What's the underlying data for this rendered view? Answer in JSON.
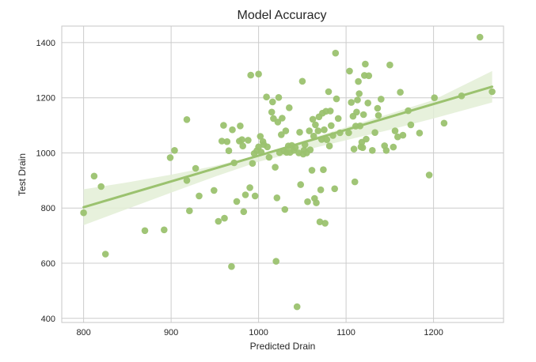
{
  "chart_data": {
    "type": "scatter",
    "title": "Model Accuracy",
    "xlabel": "Predicted Drain",
    "ylabel": "Test Drain",
    "xlim": [
      775,
      1280
    ],
    "ylim": [
      385,
      1460
    ],
    "xticks": [
      800,
      900,
      1000,
      1100,
      1200
    ],
    "yticks": [
      400,
      600,
      800,
      1000,
      1200,
      1400
    ],
    "grid": true,
    "colors": {
      "points": "#9bc26f",
      "regression_line": "#9bc26f",
      "confidence_band": "#e3efd6",
      "grid": "#cccccc",
      "frame": "#c7c7c7"
    },
    "regression_line": {
      "x": [
        800,
        1267
      ],
      "y": [
        803,
        1240
      ]
    },
    "confidence_band": {
      "x": [
        800,
        850,
        900,
        950,
        1000,
        1050,
        1100,
        1150,
        1200,
        1267
      ],
      "lower": [
        738,
        797,
        856,
        914,
        968,
        1008,
        1046,
        1084,
        1125,
        1183
      ],
      "upper": [
        868,
        893,
        921,
        953,
        991,
        1043,
        1093,
        1142,
        1192,
        1297
      ]
    },
    "points": [
      [
        800,
        783
      ],
      [
        812,
        916
      ],
      [
        820,
        878
      ],
      [
        825,
        633
      ],
      [
        870,
        718
      ],
      [
        892,
        721
      ],
      [
        899,
        983
      ],
      [
        904,
        1009
      ],
      [
        918,
        1121
      ],
      [
        918,
        900
      ],
      [
        921,
        790
      ],
      [
        928,
        944
      ],
      [
        932,
        844
      ],
      [
        949,
        864
      ],
      [
        954,
        752
      ],
      [
        958,
        1043
      ],
      [
        960,
        1100
      ],
      [
        961,
        763
      ],
      [
        964,
        1041
      ],
      [
        966,
        1008
      ],
      [
        969,
        588
      ],
      [
        970,
        1084
      ],
      [
        972,
        964
      ],
      [
        975,
        824
      ],
      [
        978,
        1043
      ],
      [
        979,
        1098
      ],
      [
        981,
        1048
      ],
      [
        982,
        1025
      ],
      [
        983,
        787
      ],
      [
        985,
        848
      ],
      [
        988,
        1046
      ],
      [
        990,
        874
      ],
      [
        991,
        1282
      ],
      [
        993,
        962
      ],
      [
        995,
        998
      ],
      [
        996,
        844
      ],
      [
        998,
        1008
      ],
      [
        1000,
        1022
      ],
      [
        1000,
        1286
      ],
      [
        1002,
        1060
      ],
      [
        1003,
        1003
      ],
      [
        1005,
        1041
      ],
      [
        1006,
        1030
      ],
      [
        1009,
        1203
      ],
      [
        1010,
        1022
      ],
      [
        1012,
        984
      ],
      [
        1015,
        1148
      ],
      [
        1016,
        1185
      ],
      [
        1017,
        1125
      ],
      [
        1019,
        948
      ],
      [
        1020,
        607
      ],
      [
        1021,
        837
      ],
      [
        1022,
        1112
      ],
      [
        1023,
        1201
      ],
      [
        1024,
        1001
      ],
      [
        1026,
        1066
      ],
      [
        1027,
        1126
      ],
      [
        1029,
        1007
      ],
      [
        1030,
        795
      ],
      [
        1031,
        1080
      ],
      [
        1032,
        1002
      ],
      [
        1034,
        1025
      ],
      [
        1035,
        1164
      ],
      [
        1036,
        1002
      ],
      [
        1038,
        1027
      ],
      [
        1040,
        1009
      ],
      [
        1042,
        1019
      ],
      [
        1044,
        442
      ],
      [
        1046,
        1000
      ],
      [
        1047,
        1075
      ],
      [
        1048,
        885
      ],
      [
        1050,
        1260
      ],
      [
        1051,
        996
      ],
      [
        1052,
        1010
      ],
      [
        1053,
        1030
      ],
      [
        1055,
        1000
      ],
      [
        1056,
        823
      ],
      [
        1058,
        1080
      ],
      [
        1059,
        1011
      ],
      [
        1061,
        937
      ],
      [
        1062,
        1122
      ],
      [
        1063,
        1061
      ],
      [
        1064,
        835
      ],
      [
        1065,
        1102
      ],
      [
        1066,
        819
      ],
      [
        1068,
        1080
      ],
      [
        1069,
        1131
      ],
      [
        1070,
        750
      ],
      [
        1071,
        866
      ],
      [
        1072,
        1049
      ],
      [
        1073,
        1144
      ],
      [
        1074,
        939
      ],
      [
        1075,
        1084
      ],
      [
        1076,
        745
      ],
      [
        1077,
        1151
      ],
      [
        1078,
        1048
      ],
      [
        1080,
        1222
      ],
      [
        1081,
        1025
      ],
      [
        1082,
        1152
      ],
      [
        1083,
        1099
      ],
      [
        1085,
        1063
      ],
      [
        1087,
        870
      ],
      [
        1088,
        1362
      ],
      [
        1089,
        1196
      ],
      [
        1091,
        1125
      ],
      [
        1093,
        1073
      ],
      [
        1103,
        1073
      ],
      [
        1104,
        1297
      ],
      [
        1106,
        1183
      ],
      [
        1108,
        1133
      ],
      [
        1109,
        1014
      ],
      [
        1110,
        895
      ],
      [
        1111,
        1097
      ],
      [
        1112,
        1148
      ],
      [
        1113,
        1192
      ],
      [
        1114,
        1259
      ],
      [
        1115,
        1215
      ],
      [
        1116,
        1098
      ],
      [
        1117,
        1022
      ],
      [
        1118,
        1039
      ],
      [
        1119,
        1019
      ],
      [
        1120,
        1139
      ],
      [
        1121,
        1281
      ],
      [
        1122,
        1322
      ],
      [
        1123,
        1050
      ],
      [
        1125,
        1181
      ],
      [
        1126,
        1280
      ],
      [
        1130,
        1009
      ],
      [
        1133,
        1074
      ],
      [
        1136,
        1162
      ],
      [
        1137,
        1136
      ],
      [
        1140,
        1195
      ],
      [
        1144,
        1026
      ],
      [
        1146,
        1009
      ],
      [
        1150,
        1319
      ],
      [
        1154,
        1021
      ],
      [
        1156,
        1080
      ],
      [
        1159,
        1058
      ],
      [
        1162,
        1220
      ],
      [
        1165,
        1064
      ],
      [
        1171,
        1153
      ],
      [
        1174,
        1102
      ],
      [
        1184,
        1072
      ],
      [
        1195,
        920
      ],
      [
        1201,
        1200
      ],
      [
        1212,
        1108
      ],
      [
        1232,
        1207
      ],
      [
        1253,
        1420
      ],
      [
        1267,
        1222
      ]
    ]
  }
}
